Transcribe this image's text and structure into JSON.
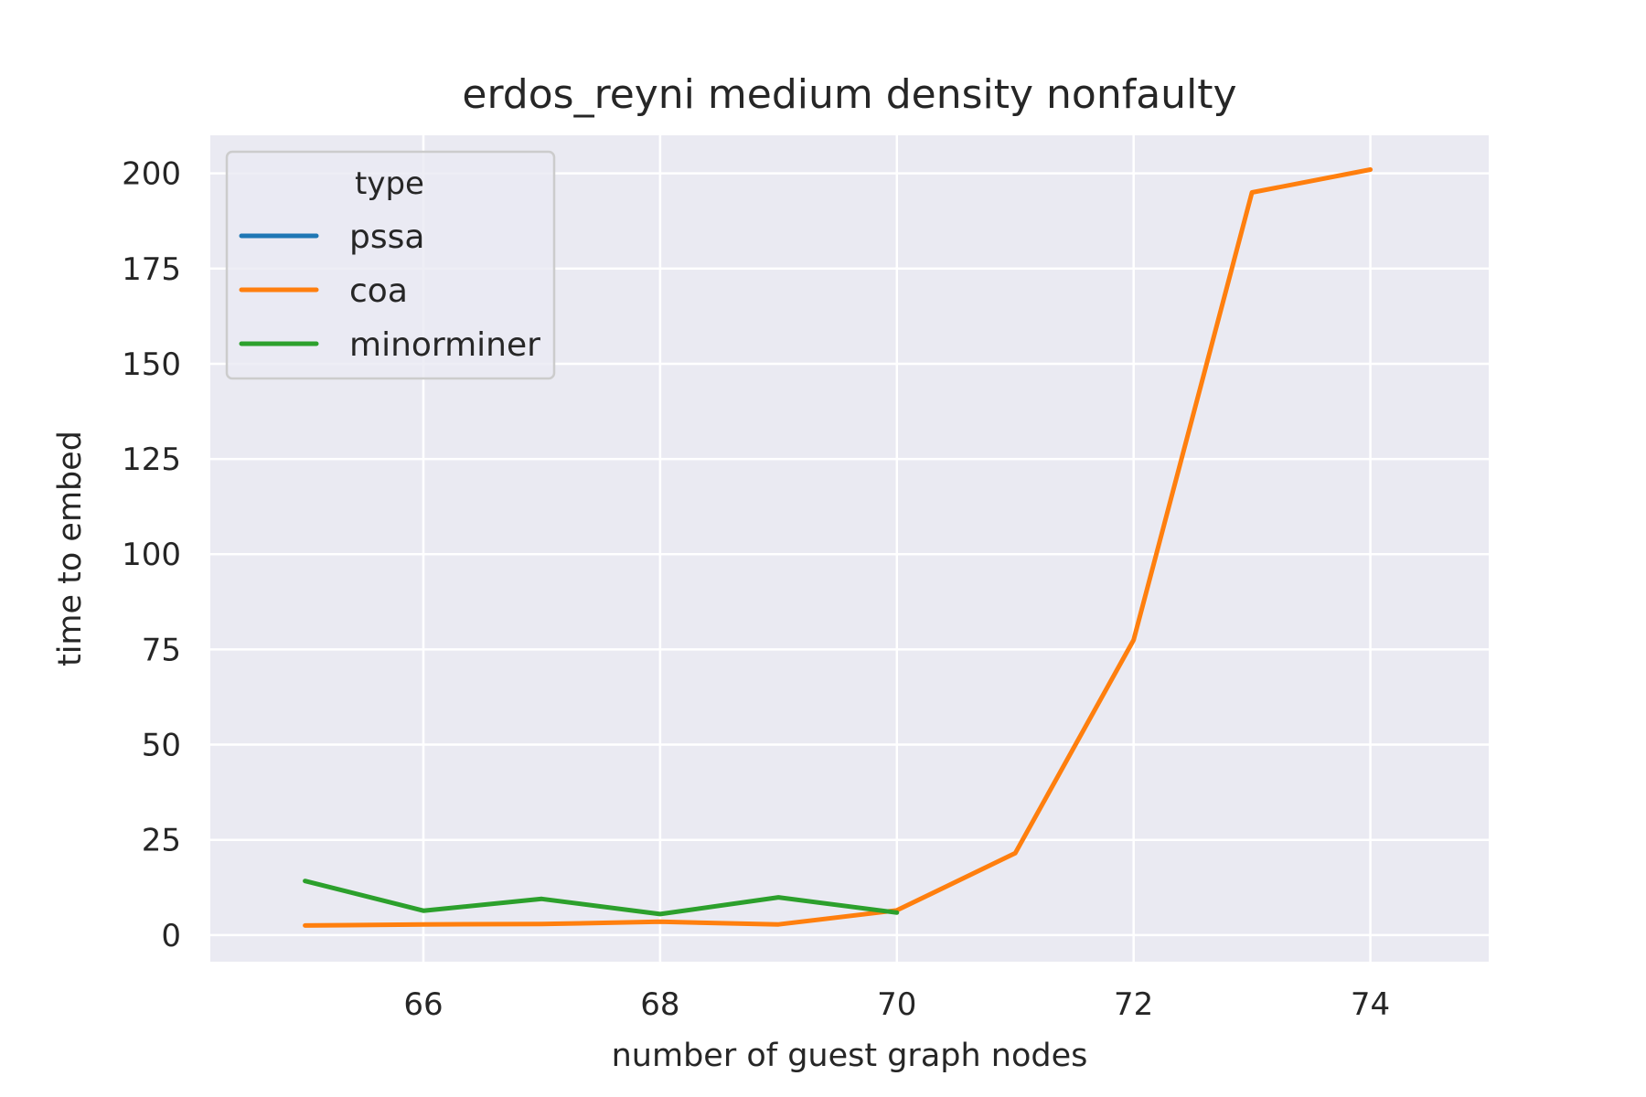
{
  "chart_data": {
    "type": "line",
    "title": "erdos_reyni medium density nonfaulty",
    "xlabel": "number of guest graph nodes",
    "ylabel": "time to embed",
    "xlim": [
      64.2,
      75.0
    ],
    "ylim": [
      -7,
      210
    ],
    "xticks": [
      66,
      68,
      70,
      72,
      74
    ],
    "yticks": [
      0,
      25,
      50,
      75,
      100,
      125,
      150,
      175,
      200
    ],
    "grid": true,
    "legend": {
      "title": "type",
      "placement": "top-left"
    },
    "series": [
      {
        "name": "pssa",
        "color": "#1f77b4",
        "x": [],
        "y": []
      },
      {
        "name": "coa",
        "color": "#ff7f0e",
        "x": [
          65,
          66,
          67,
          68,
          69,
          70,
          71,
          72,
          73,
          74
        ],
        "y": [
          2.5,
          2.8,
          2.9,
          3.5,
          2.8,
          6.5,
          21.5,
          77.5,
          195,
          201
        ]
      },
      {
        "name": "minorminer",
        "color": "#2ca02c",
        "x": [
          65,
          66,
          67,
          68,
          69,
          70
        ],
        "y": [
          14.2,
          6.4,
          9.5,
          5.5,
          9.9,
          5.9
        ]
      }
    ]
  }
}
